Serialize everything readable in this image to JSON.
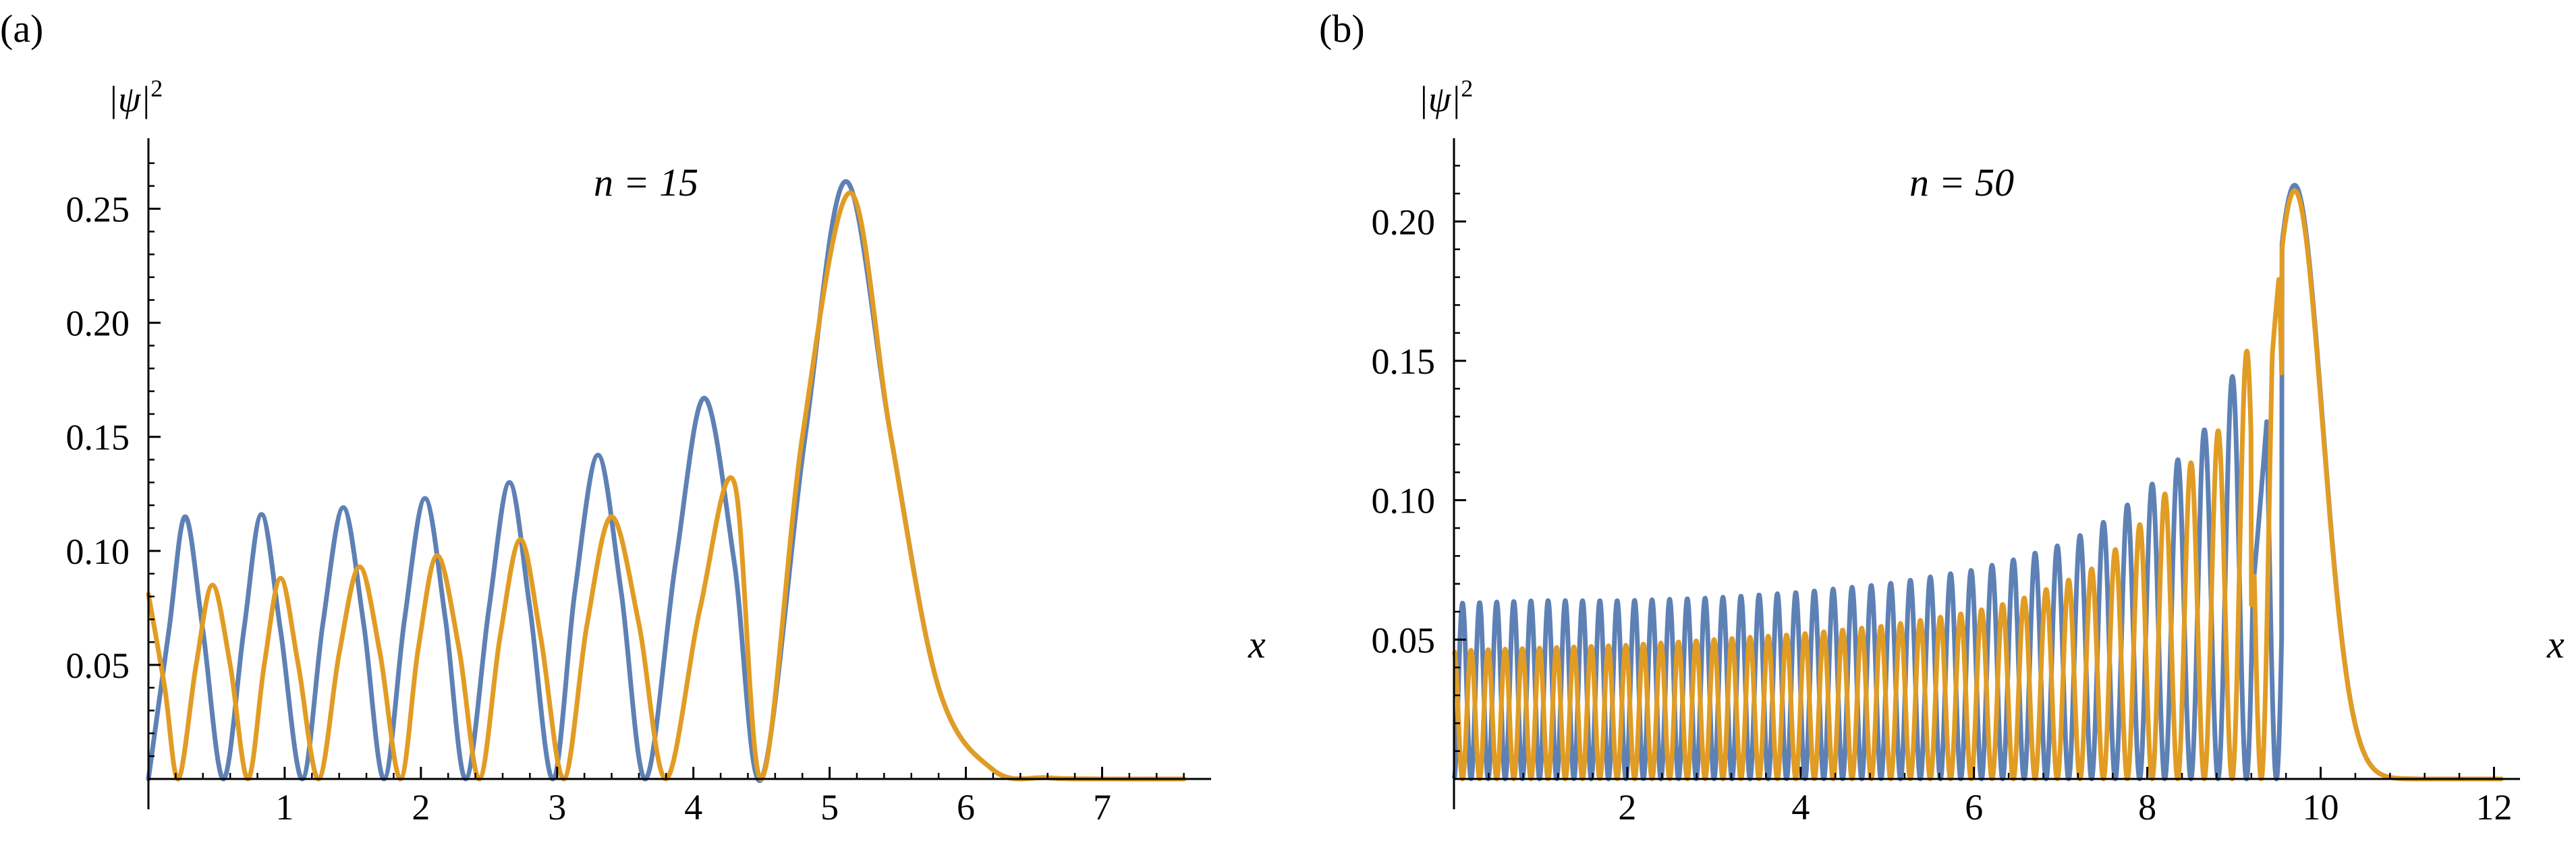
{
  "colors": {
    "blue": "#5e81b5",
    "orange": "#e19c24",
    "axis": "#000000"
  },
  "chart_data": [
    {
      "type": "line",
      "panel_label": "(a)",
      "annotation": "n = 15",
      "n": 15,
      "xlabel": "x",
      "ylabel": "|ψ|",
      "ylabel_sup": "2",
      "xlim": [
        0,
        7.8
      ],
      "ylim": [
        0,
        0.275
      ],
      "xticks": [
        1,
        2,
        3,
        4,
        5,
        6,
        7
      ],
      "yticks": [
        0.05,
        0.1,
        0.15,
        0.2,
        0.25
      ],
      "ytick_labels": [
        "0.05",
        "0.10",
        "0.15",
        "0.20",
        "0.25"
      ],
      "series": [
        {
          "color": "blue",
          "x": [
            0,
            0.15,
            0.27,
            0.4,
            0.55,
            0.7,
            0.83,
            0.97,
            1.13,
            1.28,
            1.43,
            1.58,
            1.73,
            1.88,
            2.03,
            2.18,
            2.33,
            2.5,
            2.65,
            2.8,
            2.97,
            3.13,
            3.3,
            3.47,
            3.65,
            3.87,
            4.08,
            4.3,
            4.5,
            4.82,
            5.12,
            5.45,
            5.8,
            6.2,
            6.6,
            7.0,
            7.6
          ],
          "y": [
            0,
            0.065,
            0.115,
            0.065,
            0,
            0.065,
            0.116,
            0.065,
            0,
            0.068,
            0.119,
            0.068,
            0,
            0.07,
            0.123,
            0.07,
            0,
            0.075,
            0.13,
            0.075,
            0,
            0.082,
            0.142,
            0.082,
            0,
            0.095,
            0.167,
            0.095,
            0,
            0.15,
            0.262,
            0.15,
            0.04,
            0.004,
            0.0005,
            0,
            0
          ]
        },
        {
          "color": "orange",
          "x": [
            0,
            0.12,
            0.22,
            0.35,
            0.47,
            0.6,
            0.73,
            0.85,
            0.97,
            1.1,
            1.25,
            1.4,
            1.55,
            1.7,
            1.85,
            1.98,
            2.12,
            2.28,
            2.43,
            2.58,
            2.73,
            2.88,
            3.05,
            3.22,
            3.4,
            3.6,
            3.8,
            4.05,
            4.3,
            4.5,
            4.8,
            5.15,
            5.45,
            5.8,
            6.2,
            6.6,
            7.0,
            7.6
          ],
          "y": [
            0.081,
            0.04,
            0,
            0.05,
            0.085,
            0.05,
            0,
            0.05,
            0.088,
            0.05,
            0,
            0.055,
            0.093,
            0.055,
            0,
            0.057,
            0.098,
            0.057,
            0,
            0.062,
            0.105,
            0.062,
            0,
            0.068,
            0.115,
            0.068,
            0,
            0.075,
            0.13,
            0,
            0.15,
            0.257,
            0.15,
            0.04,
            0.004,
            0.0005,
            0,
            0
          ]
        }
      ]
    },
    {
      "type": "line",
      "panel_label": "(b)",
      "annotation": "n = 50",
      "n": 50,
      "xlabel": "x",
      "ylabel": "|ψ|",
      "ylabel_sup": "2",
      "xlim": [
        0,
        12.3
      ],
      "ylim": [
        0,
        0.225
      ],
      "xticks": [
        2,
        4,
        6,
        8,
        10,
        12
      ],
      "yticks": [
        0.05,
        0.1,
        0.15,
        0.2
      ],
      "ytick_labels": [
        "0.05",
        "0.10",
        "0.15",
        "0.20"
      ],
      "envelope": {
        "blue_x": [
          0,
          1,
          2,
          3,
          4,
          5,
          6,
          6.5,
          7,
          7.4,
          7.8,
          8.25,
          8.85,
          9.7
        ],
        "blue_y": [
          0.063,
          0.064,
          0.064,
          0.065,
          0.067,
          0.07,
          0.075,
          0.079,
          0.084,
          0.09,
          0.099,
          0.111,
          0.132,
          0.213
        ],
        "orange_x": [
          0,
          1,
          2,
          3,
          4,
          5,
          6,
          6.5,
          7,
          7.4,
          7.8,
          8.3,
          8.9,
          9.7
        ],
        "orange_y": [
          0.046,
          0.047,
          0.048,
          0.05,
          0.052,
          0.055,
          0.06,
          0.064,
          0.07,
          0.076,
          0.087,
          0.106,
          0.128,
          0.211
        ]
      },
      "series": [
        {
          "color": "blue"
        },
        {
          "color": "orange"
        }
      ]
    }
  ]
}
